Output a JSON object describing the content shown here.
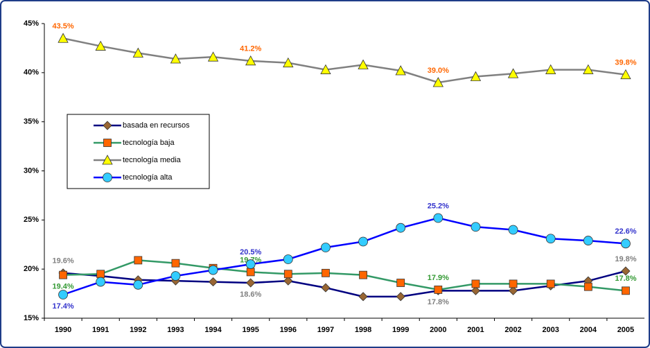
{
  "chart_data": {
    "type": "line",
    "categories": [
      "1990",
      "1991",
      "1992",
      "1993",
      "1994",
      "1995",
      "1996",
      "1997",
      "1998",
      "1999",
      "2000",
      "2001",
      "2002",
      "2003",
      "2004",
      "2005"
    ],
    "ylim": [
      15,
      45
    ],
    "yticks": [
      {
        "value": 15,
        "label": "15%"
      },
      {
        "value": 20,
        "label": "20%"
      },
      {
        "value": 25,
        "label": "25%"
      },
      {
        "value": 30,
        "label": "30%"
      },
      {
        "value": 35,
        "label": "35%"
      },
      {
        "value": 40,
        "label": "40%"
      },
      {
        "value": 45,
        "label": "45%"
      }
    ],
    "grid": false,
    "legend": "center left",
    "series": [
      {
        "name": "basada en recursos",
        "color": "#000080",
        "marker": "diamond",
        "marker_color": "#996633",
        "label_color": "#808080",
        "values": [
          19.6,
          19.3,
          18.9,
          18.8,
          18.7,
          18.6,
          18.8,
          18.1,
          17.2,
          17.2,
          17.8,
          17.8,
          17.8,
          18.3,
          18.8,
          19.8
        ],
        "value_labels": [
          "19.6%",
          null,
          null,
          null,
          null,
          "18.6%",
          null,
          null,
          null,
          null,
          "17.8%",
          null,
          null,
          null,
          null,
          "19.8%"
        ]
      },
      {
        "name": "tecnología baja",
        "color": "#339966",
        "marker": "square",
        "marker_color": "#ff6600",
        "label_color": "#339933",
        "values": [
          19.4,
          19.5,
          20.9,
          20.6,
          20.1,
          19.7,
          19.5,
          19.6,
          19.4,
          18.6,
          17.9,
          18.5,
          18.5,
          18.5,
          18.2,
          17.8
        ],
        "value_labels": [
          "19.4%",
          null,
          null,
          null,
          null,
          "19.7%",
          null,
          null,
          null,
          null,
          "17.9%",
          null,
          null,
          null,
          null,
          "17.8%"
        ]
      },
      {
        "name": "tecnología media",
        "color": "#808080",
        "marker": "triangle",
        "marker_color": "#ffff00",
        "label_color": "#ff6600",
        "values": [
          43.5,
          42.7,
          42.0,
          41.4,
          41.6,
          41.2,
          41.0,
          40.3,
          40.8,
          40.2,
          39.0,
          39.6,
          39.9,
          40.3,
          40.3,
          39.8
        ],
        "value_labels": [
          "43.5%",
          null,
          null,
          null,
          null,
          "41.2%",
          null,
          null,
          null,
          null,
          "39.0%",
          null,
          null,
          null,
          null,
          "39.8%"
        ]
      },
      {
        "name": "tecnología alta",
        "color": "#0000ff",
        "marker": "circle",
        "marker_color": "#33ccff",
        "label_color": "#3333cc",
        "values": [
          17.4,
          18.7,
          18.4,
          19.3,
          19.9,
          20.5,
          21.0,
          22.2,
          22.8,
          24.2,
          25.2,
          24.3,
          24.0,
          23.1,
          22.9,
          22.6
        ],
        "value_labels": [
          "17.4%",
          null,
          null,
          null,
          null,
          "20.5%",
          null,
          null,
          null,
          null,
          "25.2%",
          null,
          null,
          null,
          null,
          "22.6%"
        ]
      }
    ]
  }
}
